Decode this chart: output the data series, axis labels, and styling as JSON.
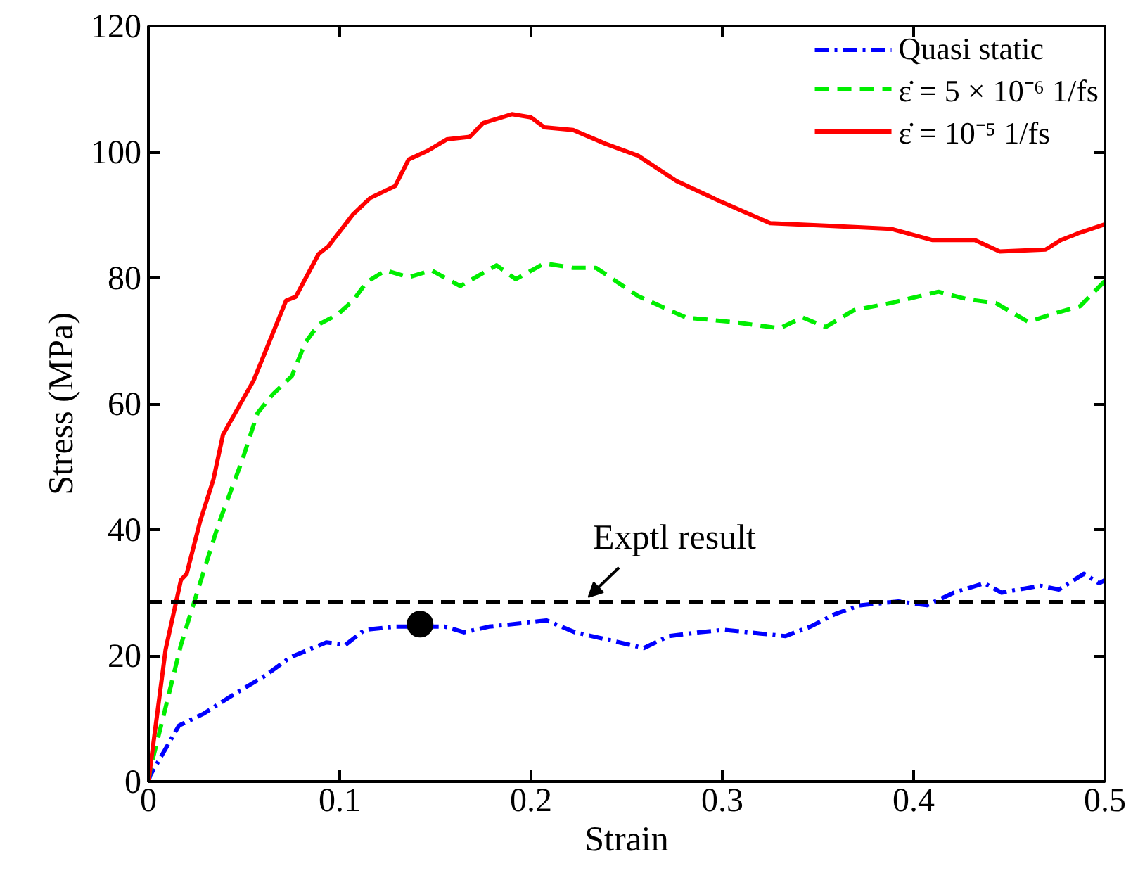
{
  "chart_data": {
    "type": "line",
    "xlabel": "Strain",
    "ylabel": "Stress (MPa)",
    "xlim": [
      0,
      0.5
    ],
    "ylim": [
      0,
      120
    ],
    "xticks": [
      0,
      0.1,
      0.2,
      0.3,
      0.4,
      0.5
    ],
    "yticks": [
      0,
      20,
      40,
      60,
      80,
      100,
      120
    ],
    "grid": false,
    "legend": "top right",
    "series": [
      {
        "name": "Quasi static",
        "color": "#0000ff",
        "line_style": "dashdot",
        "x": [
          0,
          0.001,
          0.016,
          0.029,
          0.045,
          0.061,
          0.074,
          0.093,
          0.103,
          0.113,
          0.129,
          0.155,
          0.165,
          0.178,
          0.194,
          0.208,
          0.223,
          0.239,
          0.259,
          0.272,
          0.288,
          0.301,
          0.32,
          0.333,
          0.346,
          0.359,
          0.372,
          0.392,
          0.407,
          0.421,
          0.437,
          0.446,
          0.466,
          0.476,
          0.489,
          0.497,
          0.5
        ],
        "values": [
          0,
          1,
          8.9,
          10.8,
          13.9,
          16.8,
          19.7,
          22.1,
          21.7,
          24.1,
          24.6,
          24.6,
          23.7,
          24.6,
          25.1,
          25.6,
          23.7,
          22.6,
          21.2,
          23.1,
          23.7,
          24.1,
          23.5,
          23.1,
          24.6,
          26.6,
          28,
          28.6,
          28,
          30,
          31.5,
          30,
          31.1,
          30.5,
          33,
          31.5,
          32
        ]
      },
      {
        "name": "ε̇ = 5 × 10⁻⁶ 1/fs",
        "color": "#00ee00",
        "line_style": "dashed",
        "x": [
          0,
          0.001,
          0.009,
          0.017,
          0.024,
          0.035,
          0.038,
          0.049,
          0.057,
          0.065,
          0.075,
          0.082,
          0.089,
          0.099,
          0.107,
          0.114,
          0.124,
          0.136,
          0.148,
          0.163,
          0.182,
          0.192,
          0.207,
          0.222,
          0.234,
          0.256,
          0.281,
          0.305,
          0.33,
          0.342,
          0.354,
          0.369,
          0.388,
          0.413,
          0.428,
          0.443,
          0.46,
          0.472,
          0.487,
          0.5
        ],
        "values": [
          0,
          2,
          11.8,
          21.7,
          28.6,
          39.3,
          42,
          51,
          58.5,
          61.5,
          64.4,
          69.7,
          72.6,
          74.2,
          76.4,
          79.3,
          81.2,
          80.1,
          81.2,
          78.7,
          82,
          79.8,
          82.3,
          81.6,
          81.6,
          77.1,
          73.7,
          73,
          72,
          73.7,
          72.2,
          74.9,
          76,
          77.8,
          76.6,
          76,
          73,
          74.2,
          75.5,
          79.5
        ]
      },
      {
        "name": "ε̇ = 10⁻⁵ 1/fs",
        "color": "#ff0000",
        "line_style": "solid",
        "x": [
          0,
          0.009,
          0.017,
          0.02,
          0.027,
          0.034,
          0.039,
          0.055,
          0.072,
          0.077,
          0.089,
          0.094,
          0.107,
          0.116,
          0.129,
          0.136,
          0.146,
          0.156,
          0.168,
          0.175,
          0.19,
          0.2,
          0.207,
          0.222,
          0.239,
          0.256,
          0.276,
          0.3,
          0.325,
          0.354,
          0.388,
          0.41,
          0.432,
          0.445,
          0.469,
          0.477,
          0.487,
          0.5
        ],
        "values": [
          0,
          21,
          32,
          33,
          41.3,
          48,
          55.1,
          63.7,
          76.4,
          77,
          83.8,
          85,
          90.1,
          92.7,
          94.6,
          98.8,
          100.2,
          102,
          102.4,
          104.6,
          106,
          105.5,
          103.9,
          103.5,
          101.3,
          99.4,
          95.4,
          92,
          88.7,
          88.3,
          87.8,
          86,
          86,
          84.2,
          84.5,
          86,
          87.2,
          88.5
        ]
      },
      {
        "type": "scatter",
        "color": "#000000",
        "marker": "circle",
        "x": [
          0.142
        ],
        "values": [
          25
        ]
      }
    ],
    "ref_lines": [
      {
        "axis": "y",
        "value": 28.5,
        "color": "#000000",
        "line_style": "dashed"
      }
    ],
    "annotations": [
      {
        "text": "Exptl result",
        "x": 0.23,
        "y": 28.5
      }
    ]
  }
}
